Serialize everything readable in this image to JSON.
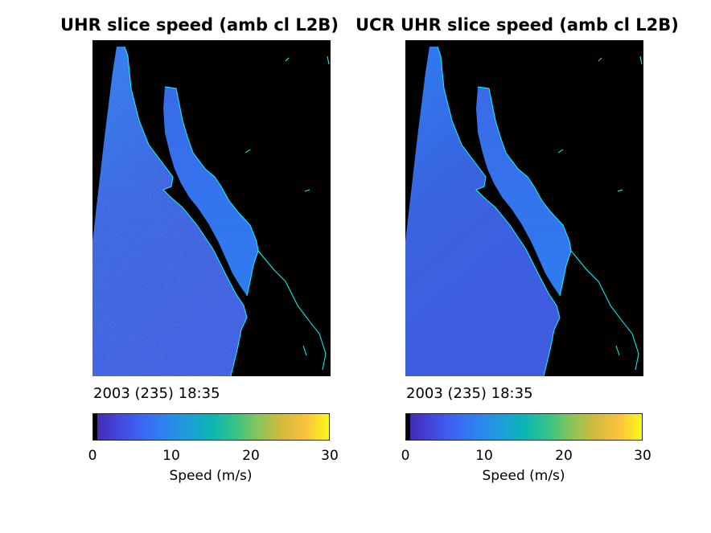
{
  "panels": [
    {
      "title": "UHR slice speed (amb cl L2B)",
      "timestamp": "2003 (235) 18:35",
      "colorbar": {
        "label": "Speed (m/s)",
        "ticks": [
          "0",
          "10",
          "20",
          "30"
        ],
        "min": 0,
        "max": 30
      }
    },
    {
      "title": "UCR UHR slice speed (amb cl L2B)",
      "timestamp": "2003 (235) 18:35",
      "colorbar": {
        "label": "Speed (m/s)",
        "ticks": [
          "0",
          "10",
          "20",
          "30"
        ],
        "min": 0,
        "max": 30
      }
    }
  ],
  "colors": {
    "land": "#000000",
    "coast": "#00ffff",
    "ocean_low": "#3b5bd6",
    "ocean_mid": "#2f7cf0",
    "colormap": [
      "#000000",
      "#3e26a8",
      "#4741dd",
      "#2f7cf0",
      "#1e9bdb",
      "#0bb5b3",
      "#42c47f",
      "#a2c54c",
      "#e2b92f",
      "#fcc23e",
      "#f9fb14"
    ]
  }
}
